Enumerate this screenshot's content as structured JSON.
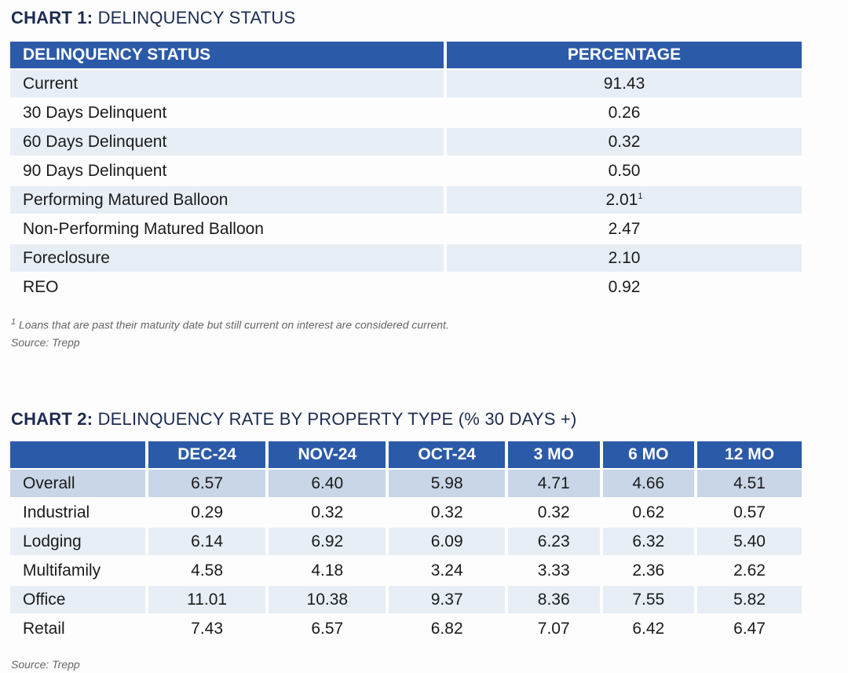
{
  "chart1": {
    "title_bold": "CHART 1:",
    "title_rest": " DELINQUENCY STATUS",
    "headers": [
      "DELINQUENCY STATUS",
      "PERCENTAGE"
    ],
    "rows": [
      [
        "Current",
        "91.43",
        ""
      ],
      [
        "30 Days Delinquent",
        "0.26",
        ""
      ],
      [
        "60 Days Delinquent",
        "0.32",
        ""
      ],
      [
        "90 Days Delinquent",
        "0.50",
        ""
      ],
      [
        "Performing Matured Balloon",
        "2.01",
        "1"
      ],
      [
        "Non-Performing Matured Balloon",
        "2.47",
        ""
      ],
      [
        "Foreclosure",
        "2.10",
        ""
      ],
      [
        "REO",
        "0.92",
        ""
      ]
    ],
    "footnote_mark": "1",
    "footnote": "Loans that are past their maturity date but still current on interest are considered current.",
    "source": "Source: Trepp"
  },
  "chart2": {
    "title_bold": "CHART 2:",
    "title_rest": " DELINQUENCY RATE BY PROPERTY TYPE (% 30 DAYS +)",
    "headers": [
      "",
      "DEC-24",
      "NOV-24",
      "OCT-24",
      "3 MO",
      "6 MO",
      "12 MO"
    ],
    "rows": [
      [
        "Overall",
        "6.57",
        "6.40",
        "5.98",
        "4.71",
        "4.66",
        "4.51"
      ],
      [
        "Industrial",
        "0.29",
        "0.32",
        "0.32",
        "0.32",
        "0.62",
        "0.57"
      ],
      [
        "Lodging",
        "6.14",
        "6.92",
        "6.09",
        "6.23",
        "6.32",
        "5.40"
      ],
      [
        "Multifamily",
        "4.58",
        "4.18",
        "3.24",
        "3.33",
        "2.36",
        "2.62"
      ],
      [
        "Office",
        "11.01",
        "10.38",
        "9.37",
        "8.36",
        "7.55",
        "5.82"
      ],
      [
        "Retail",
        "7.43",
        "6.57",
        "6.82",
        "7.07",
        "6.42",
        "6.47"
      ]
    ],
    "source": "Source: Trepp"
  }
}
